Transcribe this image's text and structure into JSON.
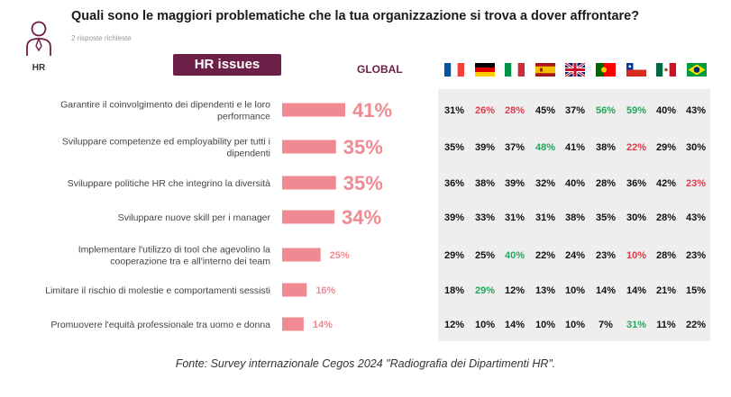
{
  "header": {
    "title": "Quali sono le maggiori problematiche che la tua organizzazione si trova a dover affrontare?",
    "subtitle": "2 risposte richieste",
    "hr_icon_label": "HR",
    "hr_issues_label": "HR issues",
    "global_label": "GLOBAL"
  },
  "flags": [
    "flag-france",
    "flag-germany",
    "flag-italy",
    "flag-spain",
    "flag-uk",
    "flag-portugal",
    "flag-chile",
    "flag-mexico",
    "flag-brazil"
  ],
  "colors": {
    "bar": "#f08a92",
    "default_text": "#111111",
    "high": "#26a65b",
    "low": "#e03a4a",
    "accent": "#6e1f47"
  },
  "chart_data": {
    "type": "bar",
    "orientation": "horizontal",
    "categories": [
      [
        "Garantire il coinvolgimento dei dipendenti e le loro",
        "performance"
      ],
      [
        "Sviluppare competenze ed employability per tutti i",
        "dipendenti"
      ],
      [
        "Sviluppare politiche HR che integrino la diversità"
      ],
      [
        "Sviluppare nuove skill per i manager"
      ],
      [
        "Implementare l'utilizzo di tool che agevolino la",
        "cooperazione tra e all'interno dei team"
      ],
      [
        "Limitare il rischio di molestie e comportamenti sessisti"
      ],
      [
        "Promuovere l'equità professionale tra uomo e donna"
      ]
    ],
    "series": [
      {
        "name": "GLOBAL",
        "values": [
          41,
          35,
          35,
          34,
          25,
          16,
          14
        ]
      }
    ],
    "value_labels": [
      "41%",
      "35%",
      "35%",
      "34%",
      "25%",
      "16%",
      "14%"
    ],
    "country_table": [
      [
        {
          "v": "31%",
          "c": "n"
        },
        {
          "v": "26%",
          "c": "low"
        },
        {
          "v": "28%",
          "c": "low"
        },
        {
          "v": "45%",
          "c": "n"
        },
        {
          "v": "37%",
          "c": "n"
        },
        {
          "v": "56%",
          "c": "high"
        },
        {
          "v": "59%",
          "c": "high"
        },
        {
          "v": "40%",
          "c": "n"
        },
        {
          "v": "43%",
          "c": "n"
        }
      ],
      [
        {
          "v": "35%",
          "c": "n"
        },
        {
          "v": "39%",
          "c": "n"
        },
        {
          "v": "37%",
          "c": "n"
        },
        {
          "v": "48%",
          "c": "high"
        },
        {
          "v": "41%",
          "c": "n"
        },
        {
          "v": "38%",
          "c": "n"
        },
        {
          "v": "22%",
          "c": "low"
        },
        {
          "v": "29%",
          "c": "n"
        },
        {
          "v": "30%",
          "c": "n"
        }
      ],
      [
        {
          "v": "36%",
          "c": "n"
        },
        {
          "v": "38%",
          "c": "n"
        },
        {
          "v": "39%",
          "c": "n"
        },
        {
          "v": "32%",
          "c": "n"
        },
        {
          "v": "40%",
          "c": "n"
        },
        {
          "v": "28%",
          "c": "n"
        },
        {
          "v": "36%",
          "c": "n"
        },
        {
          "v": "42%",
          "c": "n"
        },
        {
          "v": "23%",
          "c": "low"
        }
      ],
      [
        {
          "v": "39%",
          "c": "n"
        },
        {
          "v": "33%",
          "c": "n"
        },
        {
          "v": "31%",
          "c": "n"
        },
        {
          "v": "31%",
          "c": "n"
        },
        {
          "v": "38%",
          "c": "n"
        },
        {
          "v": "35%",
          "c": "n"
        },
        {
          "v": "30%",
          "c": "n"
        },
        {
          "v": "28%",
          "c": "n"
        },
        {
          "v": "43%",
          "c": "n"
        }
      ],
      [
        {
          "v": "29%",
          "c": "n"
        },
        {
          "v": "25%",
          "c": "n"
        },
        {
          "v": "40%",
          "c": "high"
        },
        {
          "v": "22%",
          "c": "n"
        },
        {
          "v": "24%",
          "c": "n"
        },
        {
          "v": "23%",
          "c": "n"
        },
        {
          "v": "10%",
          "c": "low"
        },
        {
          "v": "28%",
          "c": "n"
        },
        {
          "v": "23%",
          "c": "n"
        }
      ],
      [
        {
          "v": "18%",
          "c": "n"
        },
        {
          "v": "29%",
          "c": "high"
        },
        {
          "v": "12%",
          "c": "n"
        },
        {
          "v": "13%",
          "c": "n"
        },
        {
          "v": "10%",
          "c": "n"
        },
        {
          "v": "14%",
          "c": "n"
        },
        {
          "v": "14%",
          "c": "n"
        },
        {
          "v": "21%",
          "c": "n"
        },
        {
          "v": "15%",
          "c": "n"
        }
      ],
      [
        {
          "v": "12%",
          "c": "n"
        },
        {
          "v": "10%",
          "c": "n"
        },
        {
          "v": "14%",
          "c": "n"
        },
        {
          "v": "10%",
          "c": "n"
        },
        {
          "v": "10%",
          "c": "n"
        },
        {
          "v": "7%",
          "c": "n"
        },
        {
          "v": "31%",
          "c": "high"
        },
        {
          "v": "11%",
          "c": "n"
        },
        {
          "v": "22%",
          "c": "n"
        }
      ]
    ]
  },
  "footer": "Fonte: Survey internazionale Cegos 2024 \"Radiografia dei Dipartimenti HR\"."
}
